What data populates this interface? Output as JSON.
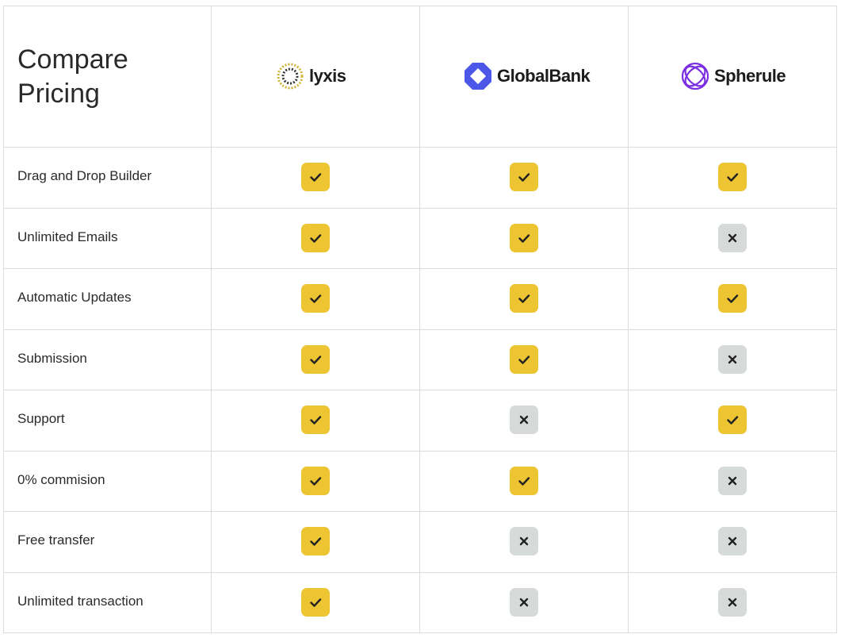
{
  "header": {
    "title": "Compare Pricing",
    "brands": [
      "lyxis",
      "GlobalBank",
      "Spherule"
    ]
  },
  "table": {
    "rows": [
      {
        "feature": "Drag and Drop Builder",
        "available": [
          true,
          true,
          true
        ]
      },
      {
        "feature": "Unlimited Emails",
        "available": [
          true,
          true,
          false
        ]
      },
      {
        "feature": "Automatic Updates",
        "available": [
          true,
          true,
          true
        ]
      },
      {
        "feature": "Submission",
        "available": [
          true,
          true,
          false
        ]
      },
      {
        "feature": "Support",
        "available": [
          true,
          false,
          true
        ]
      },
      {
        "feature": "0% commision",
        "available": [
          true,
          true,
          false
        ]
      },
      {
        "feature": "Free transfer",
        "available": [
          true,
          false,
          false
        ]
      },
      {
        "feature": "Unlimited transaction",
        "available": [
          true,
          false,
          false
        ]
      }
    ]
  }
}
